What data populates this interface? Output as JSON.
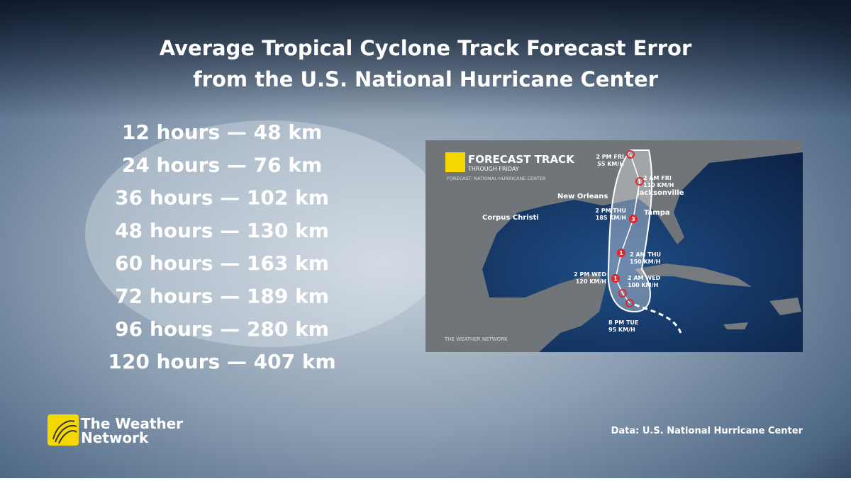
{
  "title": [
    "Average Tropical Cyclone Track Forecast Error",
    "from the U.S. National Hurricane Center"
  ],
  "rows": [
    "12 hours — 48 km",
    "24 hours — 76 km",
    "36 hours — 102 km",
    "48 hours — 130 km",
    "60 hours — 163 km",
    "72 hours — 189 km",
    "96 hours — 280 km",
    "120 hours — 407 km"
  ],
  "map": {
    "title": "FORECAST TRACK",
    "subtitle": "THROUGH FRIDAY",
    "credit": "FORECAST: NATIONAL HURRICANE CENTER",
    "watermark": "THE WEATHER NETWORK",
    "places": [
      "New Orleans",
      "Jacksonville",
      "Tampa",
      "Corpus Christi"
    ],
    "points": [
      {
        "time": "8 PM TUE",
        "speed": "95 KM/H"
      },
      {
        "time": "2 AM WED",
        "speed": "100 KM/H"
      },
      {
        "time": "2 PM WED",
        "speed": "120 KM/H"
      },
      {
        "time": "2 AM THU",
        "speed": "150 KM/H"
      },
      {
        "time": "2 PM THU",
        "speed": "185 KM/H"
      },
      {
        "time": "2 AM FRI",
        "speed": "110 KM/H"
      },
      {
        "time": "2 PM FRI",
        "speed": "55 KM/H"
      }
    ],
    "categories": [
      "1",
      "1",
      "3"
    ]
  },
  "logo": [
    "The Weather",
    "Network"
  ],
  "source": "Data: U.S. National Hurricane Center"
}
